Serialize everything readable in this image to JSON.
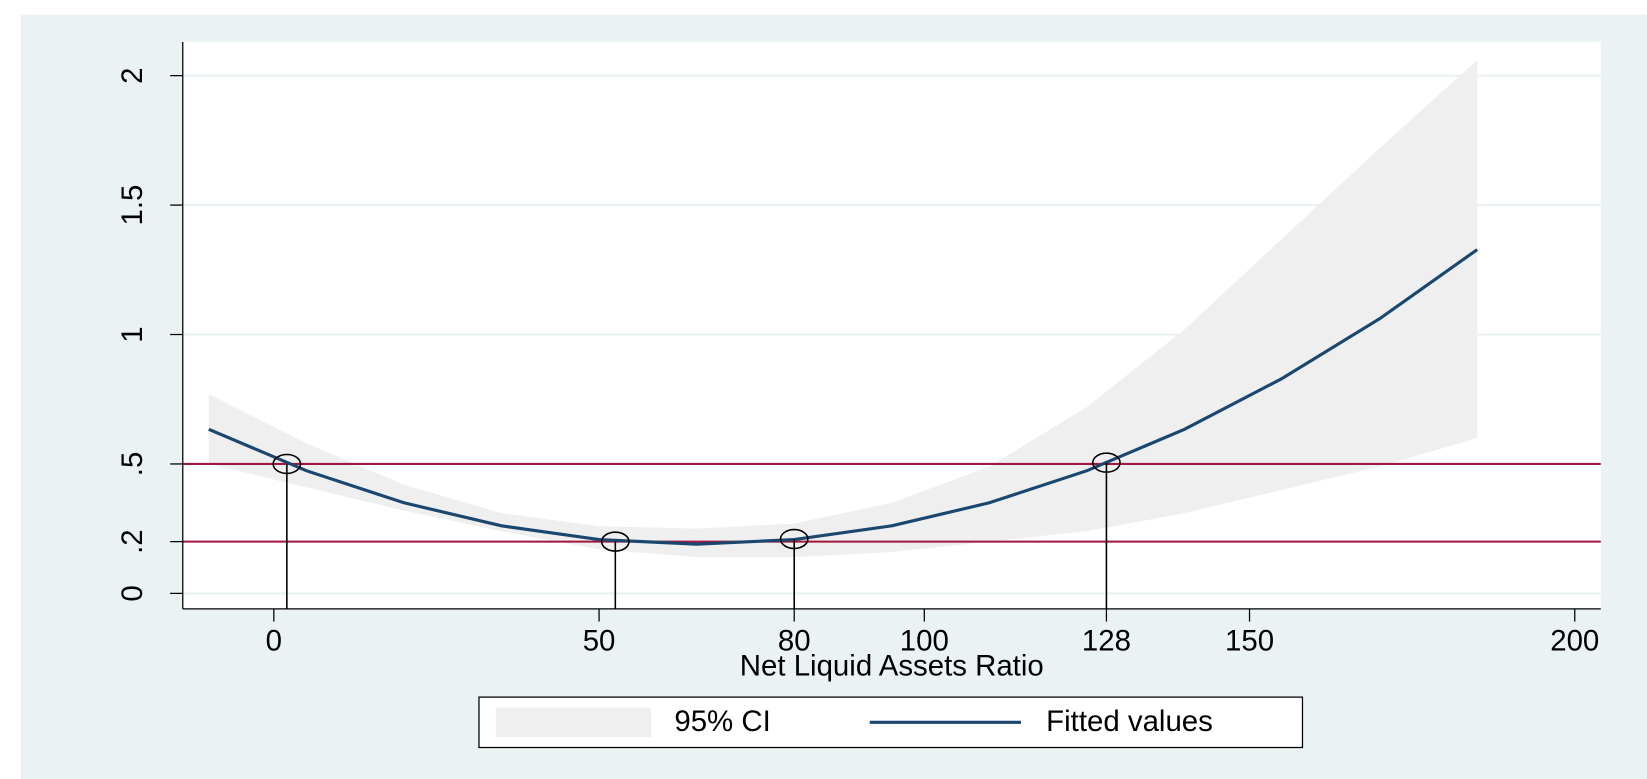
{
  "chart_data": {
    "type": "line",
    "xlabel": "Net Liquid Assets Ratio",
    "xlim": [
      -14,
      204
    ],
    "ylim": [
      -0.06,
      2.13
    ],
    "xticks": [
      0,
      50,
      80,
      100,
      128,
      150,
      200
    ],
    "yticks": [
      0,
      {
        "value": 0.2,
        "label": ".2"
      },
      {
        "value": 0.5,
        "label": ".5"
      },
      1,
      1.5,
      2
    ],
    "grid": true,
    "hlines": [
      0.5,
      0.2
    ],
    "hline_color": "#a3163f",
    "x": [
      -10,
      5,
      20,
      35,
      50,
      65,
      80,
      95,
      110,
      125,
      140,
      155,
      170,
      185
    ],
    "series": [
      {
        "name": "95% CI",
        "color": "#efefef",
        "upper": [
          0.77,
          0.58,
          0.42,
          0.31,
          0.26,
          0.25,
          0.27,
          0.35,
          0.49,
          0.72,
          1.02,
          1.37,
          1.72,
          2.06
        ],
        "lower": [
          0.5,
          0.41,
          0.32,
          0.24,
          0.17,
          0.14,
          0.14,
          0.16,
          0.2,
          0.24,
          0.31,
          0.4,
          0.49,
          0.6
        ]
      },
      {
        "name": "Fitted values",
        "color": "#1a476f",
        "values": [
          0.634,
          0.474,
          0.35,
          0.261,
          0.208,
          0.19,
          0.208,
          0.261,
          0.35,
          0.474,
          0.634,
          0.83,
          1.061,
          1.328
        ]
      }
    ],
    "points": {
      "x": [
        2,
        52.5,
        80,
        128
      ],
      "y": [
        0.5,
        0.2,
        0.21,
        0.505
      ]
    }
  }
}
